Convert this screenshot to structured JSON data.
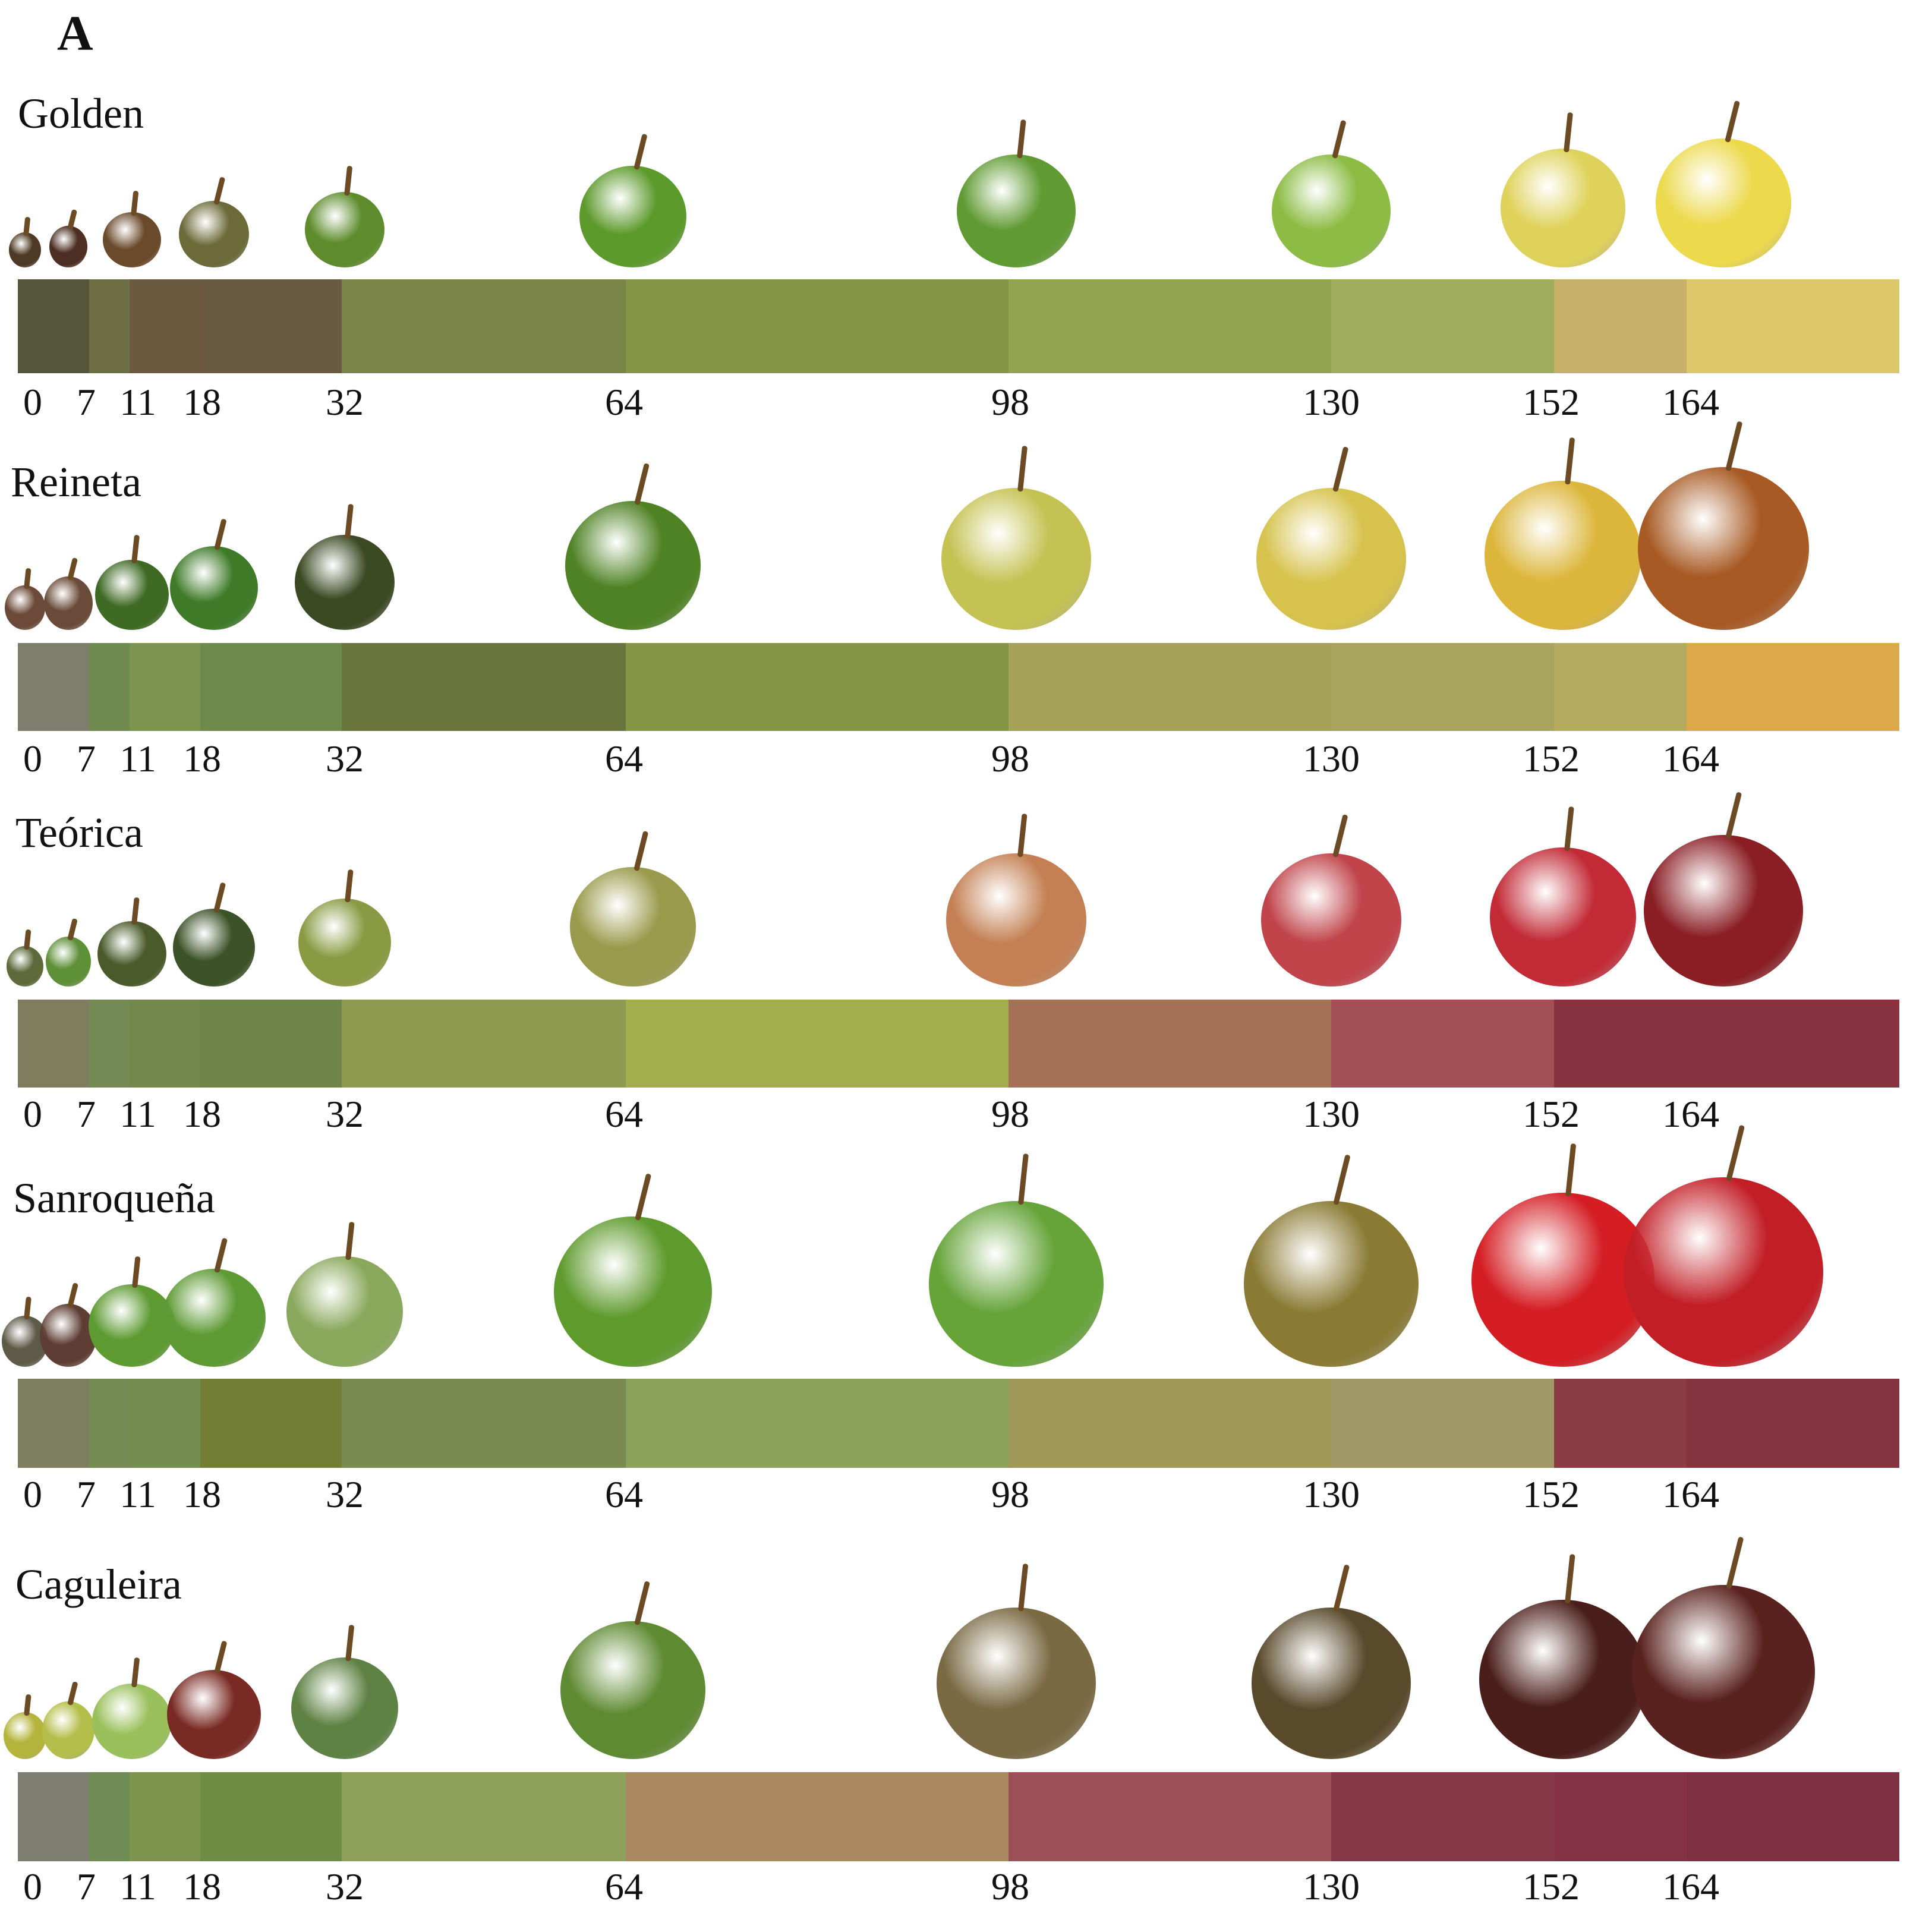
{
  "panel_label": "A",
  "days": [
    "0",
    "7",
    "11",
    "18",
    "32",
    "64",
    "98",
    "130",
    "152",
    "164"
  ],
  "varieties": [
    {
      "name": "Golden",
      "segment_colors": [
        "#545539",
        "#6e6e45",
        "#6b5a3f",
        "#6a5a42",
        "#7a8447",
        "#849646",
        "#93a44e",
        "#a0ad5d",
        "#c7b06a",
        "#ddc76b"
      ],
      "fruit_colors": [
        "#4e3a24",
        "#4c2e22",
        "#6b4a2c",
        "#6b6a38",
        "#5e8c2c",
        "#5d9a2c",
        "#5f9a32",
        "#8cbc44",
        "#dfd25a",
        "#ecd94c"
      ]
    },
    {
      "name": "Reineta",
      "segment_colors": [
        "#7e7e6c",
        "#6f8a4e",
        "#7c9450",
        "#6e8a4a",
        "#6a753d",
        "#849644",
        "#a6a25a",
        "#a8a35e",
        "#b4aa5e",
        "#dba84a"
      ],
      "fruit_colors": [
        "#6c4a3a",
        "#6a4a38",
        "#3e6a24",
        "#3e7a28",
        "#3c4a24",
        "#4e8224",
        "#c4c252",
        "#d6c24c",
        "#dcb63a",
        "#a85a24"
      ]
    },
    {
      "name": "Teórica",
      "segment_colors": [
        "#7e7e5e",
        "#748a55",
        "#74884e",
        "#6e8448",
        "#8e9a50",
        "#a2ae4e",
        "#a47157",
        "#a34f55",
        "#893341",
        "#8a3340"
      ],
      "fruit_colors": [
        "#5e6a3c",
        "#5e9038",
        "#4a5a2a",
        "#3c5228",
        "#8a9a42",
        "#9a9a4c",
        "#c48054",
        "#c0444a",
        "#c22a36",
        "#8a1e24"
      ]
    },
    {
      "name": "Sanroqueña",
      "segment_colors": [
        "#7e7e60",
        "#768c55",
        "#748d50",
        "#727e36",
        "#7a8a50",
        "#8ca25c",
        "#9f9859",
        "#a09867",
        "#8a3d45",
        "#873441"
      ],
      "fruit_colors": [
        "#5e5a48",
        "#5e3e34",
        "#5e9a32",
        "#5e9a34",
        "#8aa85c",
        "#5e9a2c",
        "#66a43a",
        "#8a7a34",
        "#d41e24",
        "#c21e26"
      ]
    },
    {
      "name": "Caguleira",
      "segment_colors": [
        "#7e7e70",
        "#6f8c54",
        "#7d944f",
        "#6e8c44",
        "#8ea05a",
        "#aa8860",
        "#9c4f57",
        "#843747",
        "#843346",
        "#7f2f42"
      ],
      "fruit_colors": [
        "#b4b43c",
        "#b4be4a",
        "#9ac05c",
        "#7a2a24",
        "#5e8244",
        "#5e8a32",
        "#7a6a44",
        "#5a4a2c",
        "#4a1e1a",
        "#5a221e"
      ]
    }
  ]
}
